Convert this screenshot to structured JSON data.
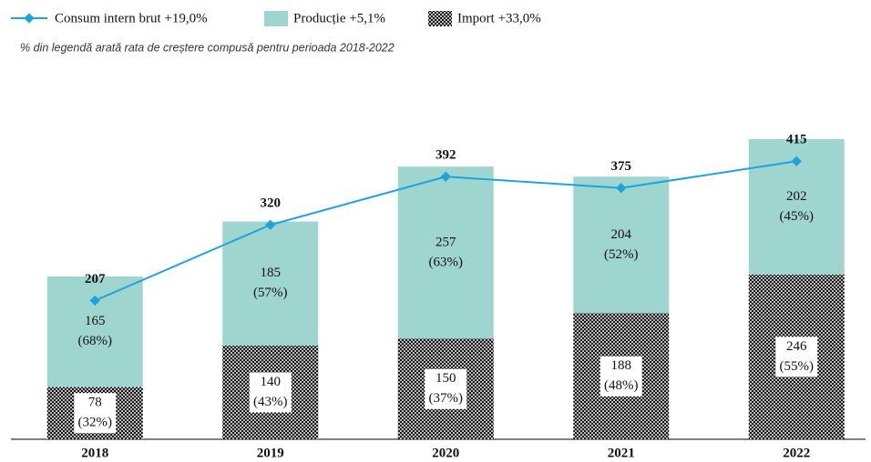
{
  "chart_data": {
    "type": "bar",
    "subtitle": "% din legendă arată rata de creștere compusă pentru perioada 2018-2022",
    "categories": [
      "2018",
      "2019",
      "2020",
      "2021",
      "2022"
    ],
    "ylim": [
      0,
      600
    ],
    "stacked": true,
    "series": [
      {
        "name": "Import +33,0%",
        "color": "#000000",
        "values": [
          78,
          140,
          150,
          188,
          246
        ],
        "percent_labels": [
          "(32%)",
          "(43%)",
          "(37%)",
          "(48%)",
          "(55%)"
        ]
      },
      {
        "name": "Producție +5,1%",
        "color": "#9fd5cf",
        "values": [
          165,
          185,
          257,
          204,
          202
        ],
        "percent_labels": [
          "(68%)",
          "(57%)",
          "(63%)",
          "(52%)",
          "(45%)"
        ]
      },
      {
        "name": "Consum intern brut +19,0%",
        "type": "line",
        "color": "#1fa3de",
        "values": [
          207,
          320,
          392,
          375,
          415
        ]
      }
    ]
  }
}
